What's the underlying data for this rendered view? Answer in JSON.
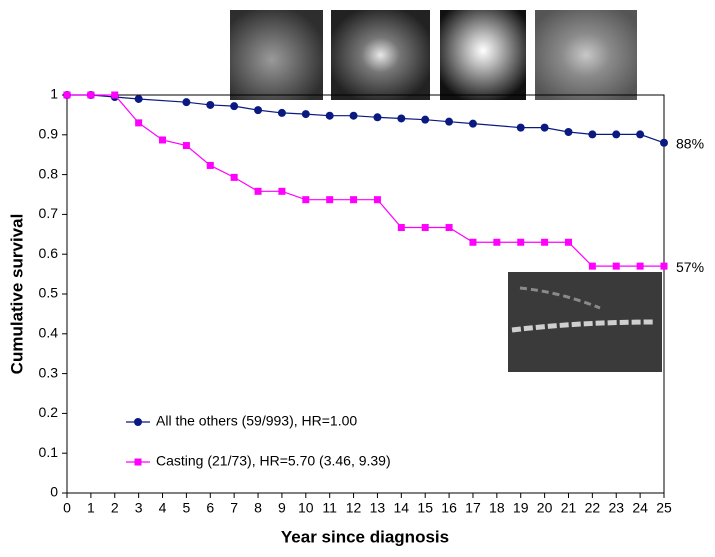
{
  "chart_data": {
    "type": "line",
    "x_label": "Year since diagnosis",
    "y_label": "Cumulative survival",
    "xlim": [
      0,
      25
    ],
    "ylim": [
      0,
      1
    ],
    "xticks": [
      0,
      1,
      2,
      3,
      4,
      5,
      6,
      7,
      8,
      9,
      10,
      11,
      12,
      13,
      14,
      15,
      16,
      17,
      18,
      19,
      20,
      21,
      22,
      23,
      24,
      25
    ],
    "yticks": [
      0,
      0.1,
      0.2,
      0.3,
      0.4,
      0.5,
      0.6,
      0.7,
      0.8,
      0.9,
      1
    ],
    "series": [
      {
        "name": "All the others (59/993), HR=1.00",
        "color": "#0b1a80",
        "marker": "circle",
        "x": [
          0,
          1,
          2,
          3,
          5,
          6,
          7,
          8,
          9,
          10,
          11,
          12,
          13,
          14,
          15,
          16,
          17,
          19,
          20,
          21,
          22,
          23,
          24,
          25
        ],
        "values": [
          1,
          1,
          0.995,
          0.99,
          0.982,
          0.975,
          0.972,
          0.962,
          0.955,
          0.952,
          0.948,
          0.948,
          0.944,
          0.941,
          0.938,
          0.933,
          0.928,
          0.918,
          0.918,
          0.907,
          0.901,
          0.901,
          0.901,
          0.88
        ]
      },
      {
        "name": "Casting (21/73), HR=5.70 (3.46, 9.39)",
        "color": "#ff00ff",
        "marker": "square",
        "x": [
          0,
          1,
          2,
          3,
          4,
          5,
          6,
          7,
          8,
          9,
          10,
          11,
          12,
          13,
          14,
          15,
          16,
          17,
          18,
          19,
          20,
          21,
          22,
          23,
          24,
          25
        ],
        "values": [
          1,
          1,
          1,
          0.93,
          0.887,
          0.873,
          0.823,
          0.793,
          0.758,
          0.758,
          0.737,
          0.737,
          0.737,
          0.737,
          0.667,
          0.667,
          0.667,
          0.63,
          0.63,
          0.63,
          0.63,
          0.63,
          0.57,
          0.57,
          0.57,
          0.57
        ]
      }
    ],
    "annotations": [
      "88%",
      "57%"
    ]
  }
}
